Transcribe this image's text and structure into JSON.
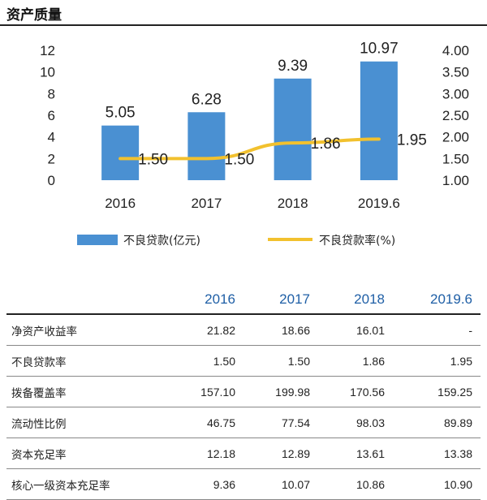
{
  "title": "资产质量",
  "chart_data": {
    "type": "bar+line",
    "categories": [
      "2016",
      "2017",
      "2018",
      "2019.6"
    ],
    "series": [
      {
        "name": "不良贷款(亿元)",
        "kind": "bar",
        "axis": "left",
        "color": "#4a90d2",
        "values": [
          5.05,
          6.28,
          9.39,
          10.97
        ],
        "labels": [
          "5.05",
          "6.28",
          "9.39",
          "10.97"
        ]
      },
      {
        "name": "不良贷款率(%)",
        "kind": "line",
        "axis": "right",
        "color": "#f2c12e",
        "values": [
          1.5,
          1.5,
          1.86,
          1.95
        ],
        "labels": [
          "1.50",
          "1.50",
          "1.86",
          "1.95"
        ]
      }
    ],
    "left_axis": {
      "min": 0,
      "max": 12,
      "ticks": [
        "0",
        "2",
        "4",
        "6",
        "8",
        "10",
        "12"
      ]
    },
    "right_axis": {
      "min": 1.0,
      "max": 4.0,
      "ticks": [
        "1.00",
        "1.50",
        "2.00",
        "2.50",
        "3.00",
        "3.50",
        "4.00"
      ]
    },
    "legend_position": "bottom",
    "grid": false
  },
  "table": {
    "headers": [
      "",
      "2016",
      "2017",
      "2018",
      "2019.6"
    ],
    "rows": [
      {
        "label": "净资产收益率",
        "values": [
          "21.82",
          "18.66",
          "16.01",
          "-"
        ]
      },
      {
        "label": "不良贷款率",
        "values": [
          "1.50",
          "1.50",
          "1.86",
          "1.95"
        ]
      },
      {
        "label": "拨备覆盖率",
        "values": [
          "157.10",
          "199.98",
          "170.56",
          "159.25"
        ]
      },
      {
        "label": "流动性比例",
        "values": [
          "46.75",
          "77.54",
          "98.03",
          "89.89"
        ]
      },
      {
        "label": "资本充足率",
        "values": [
          "12.18",
          "12.89",
          "13.61",
          "13.38"
        ]
      },
      {
        "label": "核心一级资本充足率",
        "values": [
          "9.36",
          "10.07",
          "10.86",
          "10.90"
        ]
      }
    ]
  }
}
